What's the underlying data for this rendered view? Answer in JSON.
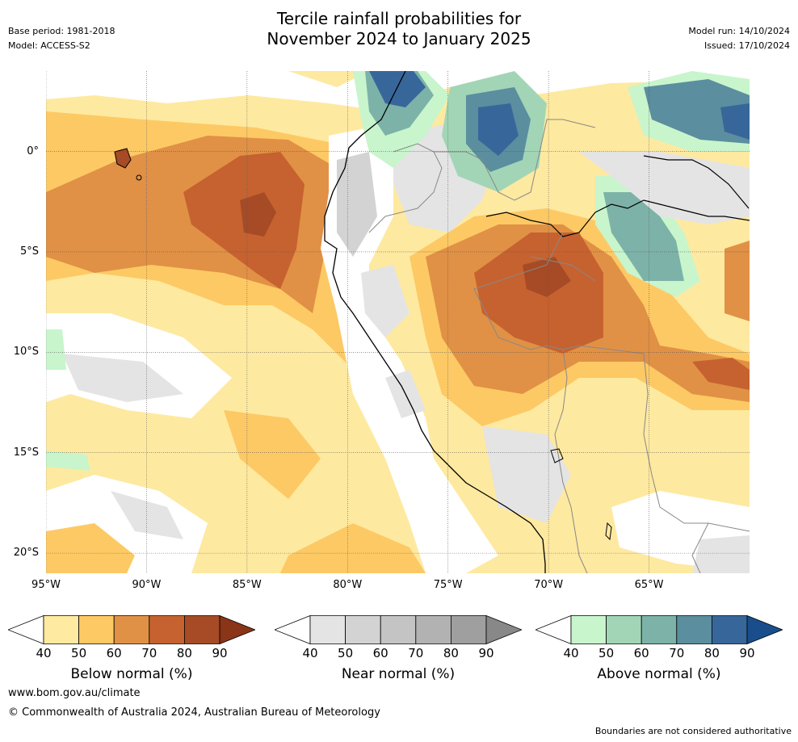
{
  "header": {
    "title_line1": "Tercile rainfall probabilities for",
    "title_line2": "November 2024 to January 2025",
    "base_period": "Base period: 1981-2018",
    "model": "Model: ACCESS-S2",
    "model_run": "Model run: 14/10/2024",
    "issued": "Issued: 17/10/2024"
  },
  "map": {
    "lat_labels": [
      {
        "text": "0°",
        "lat": 0
      },
      {
        "text": "5°S",
        "lat": -5
      },
      {
        "text": "10°S",
        "lat": -10
      },
      {
        "text": "15°S",
        "lat": -15
      },
      {
        "text": "20°S",
        "lat": -20
      }
    ],
    "lon_labels": [
      {
        "text": "95°W",
        "lon": -95
      },
      {
        "text": "90°W",
        "lon": -90
      },
      {
        "text": "85°W",
        "lon": -85
      },
      {
        "text": "80°W",
        "lon": -80
      },
      {
        "text": "75°W",
        "lon": -75
      },
      {
        "text": "70°W",
        "lon": -70
      },
      {
        "text": "65°W",
        "lon": -65
      }
    ],
    "extent": {
      "lon_min": -95,
      "lon_max": -60,
      "lat_min": -21,
      "lat_max": 4
    },
    "grid": "dotted"
  },
  "legends": [
    {
      "title": "Below normal (%)",
      "ticks": [
        "40",
        "50",
        "60",
        "70",
        "80",
        "90"
      ],
      "colors": [
        "#ffffff",
        "#feeaa0",
        "#fdc964",
        "#e09145",
        "#c6622f",
        "#a64b26",
        "#8a3418"
      ]
    },
    {
      "title": "Near normal (%)",
      "ticks": [
        "40",
        "50",
        "60",
        "70",
        "80",
        "90"
      ],
      "colors": [
        "#ffffff",
        "#e4e4e4",
        "#d3d3d3",
        "#c4c4c4",
        "#b2b2b2",
        "#9f9f9f",
        "#888888"
      ]
    },
    {
      "title": "Above normal (%)",
      "ticks": [
        "40",
        "50",
        "60",
        "70",
        "80",
        "90"
      ],
      "colors": [
        "#ffffff",
        "#c8f5cc",
        "#a2d5b6",
        "#7db2a8",
        "#5b8e9e",
        "#37679a",
        "#1a4d8c"
      ]
    }
  ],
  "footer": {
    "website": "www.bom.gov.au/climate",
    "copyright": "© Commonwealth of Australia 2024, Australian Bureau of Meteorology",
    "disclaimer": "Boundaries are not considered authoritative"
  }
}
